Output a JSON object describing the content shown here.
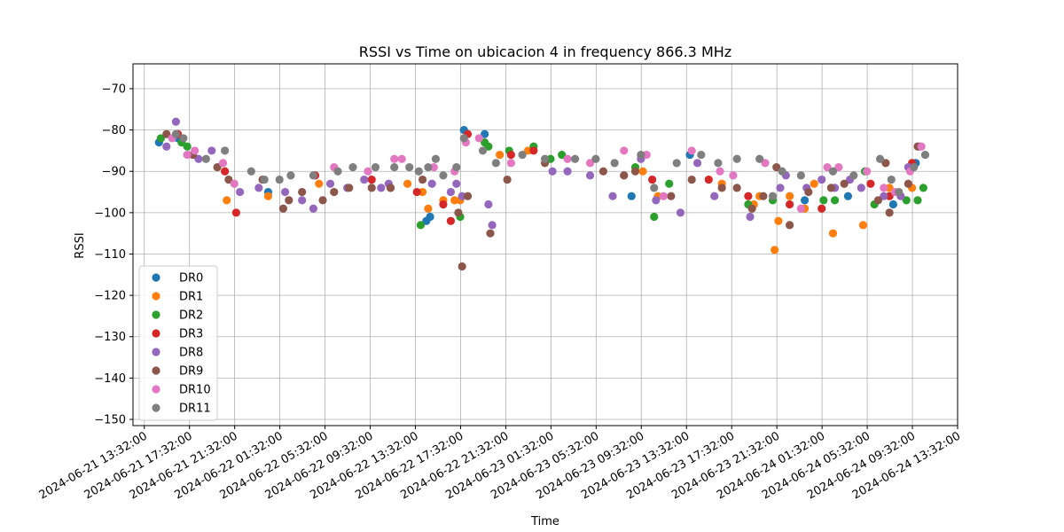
{
  "chart_data": {
    "type": "scatter",
    "title": "RSSI vs Time on ubicacion 4 in frequency 866.3 MHz",
    "xlabel": "Time",
    "ylabel": "RSSI",
    "grid": true,
    "legend_position": "lower-left",
    "xlim": [
      "2024-06-21 12:32:00",
      "2024-06-24 13:32:00"
    ],
    "ylim": [
      -151.5,
      -64
    ],
    "x_ticks": [
      "2024-06-21 13:32:00",
      "2024-06-21 17:32:00",
      "2024-06-21 21:32:00",
      "2024-06-22 01:32:00",
      "2024-06-22 05:32:00",
      "2024-06-22 09:32:00",
      "2024-06-22 13:32:00",
      "2024-06-22 17:32:00",
      "2024-06-22 21:32:00",
      "2024-06-23 01:32:00",
      "2024-06-23 05:32:00",
      "2024-06-23 09:32:00",
      "2024-06-23 13:32:00",
      "2024-06-23 17:32:00",
      "2024-06-23 21:32:00",
      "2024-06-24 01:32:00",
      "2024-06-24 05:32:00",
      "2024-06-24 09:32:00",
      "2024-06-24 13:32:00"
    ],
    "y_ticks": [
      -70,
      -80,
      -90,
      -100,
      -110,
      -120,
      -130,
      -140,
      -150
    ],
    "y_tick_labels": [
      "−70",
      "−80",
      "−90",
      "−100",
      "−110",
      "−120",
      "−130",
      "−140",
      "−150"
    ],
    "series": [
      {
        "name": "DR0",
        "color": "#1f77b4",
        "points": [
          [
            "2024-06-21 14:50",
            -83
          ],
          [
            "2024-06-21 16:30",
            -82
          ],
          [
            "2024-06-22 00:30",
            -95
          ],
          [
            "2024-06-22 14:30",
            -102
          ],
          [
            "2024-06-22 14:50",
            -101
          ],
          [
            "2024-06-22 17:50",
            -80
          ],
          [
            "2024-06-22 19:40",
            -81
          ],
          [
            "2024-06-23 08:40",
            -96
          ],
          [
            "2024-06-23 13:50",
            -86
          ],
          [
            "2024-06-24 00:00",
            -97
          ],
          [
            "2024-06-24 03:50",
            -96
          ],
          [
            "2024-06-24 07:50",
            -98
          ],
          [
            "2024-06-24 09:50",
            -88
          ]
        ]
      },
      {
        "name": "DR1",
        "color": "#ff7f0e",
        "points": [
          [
            "2024-06-21 20:50",
            -97
          ],
          [
            "2024-06-22 00:30",
            -96
          ],
          [
            "2024-06-22 05:00",
            -93
          ],
          [
            "2024-06-22 12:50",
            -93
          ],
          [
            "2024-06-22 14:10",
            -95
          ],
          [
            "2024-06-22 14:40",
            -99
          ],
          [
            "2024-06-22 16:00",
            -97
          ],
          [
            "2024-06-22 17:00",
            -97
          ],
          [
            "2024-06-22 17:30",
            -97
          ],
          [
            "2024-06-22 21:00",
            -86
          ],
          [
            "2024-06-22 23:30",
            -85
          ],
          [
            "2024-06-23 09:40",
            -90
          ],
          [
            "2024-06-23 11:00",
            -96
          ],
          [
            "2024-06-23 16:40",
            -93
          ],
          [
            "2024-06-23 20:00",
            -96
          ],
          [
            "2024-06-23 19:30",
            -98
          ],
          [
            "2024-06-23 21:20",
            -109
          ],
          [
            "2024-06-23 21:40",
            -102
          ],
          [
            "2024-06-23 22:40",
            -96
          ],
          [
            "2024-06-24 00:00",
            -99
          ],
          [
            "2024-06-24 00:50",
            -93
          ],
          [
            "2024-06-24 02:30",
            -105
          ],
          [
            "2024-06-24 05:10",
            -103
          ],
          [
            "2024-06-24 07:30",
            -94
          ],
          [
            "2024-06-24 09:30",
            -94
          ]
        ]
      },
      {
        "name": "DR2",
        "color": "#2ca02c",
        "points": [
          [
            "2024-06-21 15:00",
            -82
          ],
          [
            "2024-06-21 16:50",
            -83
          ],
          [
            "2024-06-21 17:20",
            -84
          ],
          [
            "2024-06-22 14:00",
            -103
          ],
          [
            "2024-06-22 17:30",
            -101
          ],
          [
            "2024-06-22 19:40",
            -83
          ],
          [
            "2024-06-22 20:00",
            -84
          ],
          [
            "2024-06-22 21:50",
            -85
          ],
          [
            "2024-06-23 00:00",
            -84
          ],
          [
            "2024-06-23 01:30",
            -87
          ],
          [
            "2024-06-23 02:30",
            -86
          ],
          [
            "2024-06-23 09:00",
            -89
          ],
          [
            "2024-06-23 10:40",
            -101
          ],
          [
            "2024-06-23 12:00",
            -93
          ],
          [
            "2024-06-23 19:00",
            -98
          ],
          [
            "2024-06-23 21:10",
            -97
          ],
          [
            "2024-06-24 01:40",
            -97
          ],
          [
            "2024-06-24 02:40",
            -97
          ],
          [
            "2024-06-24 05:20",
            -90
          ],
          [
            "2024-06-24 06:10",
            -98
          ],
          [
            "2024-06-24 09:00",
            -97
          ],
          [
            "2024-06-24 10:00",
            -97
          ],
          [
            "2024-06-24 10:30",
            -94
          ]
        ]
      },
      {
        "name": "DR3",
        "color": "#d62728",
        "points": [
          [
            "2024-06-21 16:30",
            -81
          ],
          [
            "2024-06-21 20:40",
            -90
          ],
          [
            "2024-06-21 21:40",
            -100
          ],
          [
            "2024-06-22 04:40",
            -91
          ],
          [
            "2024-06-22 09:40",
            -92
          ],
          [
            "2024-06-22 11:20",
            -94
          ],
          [
            "2024-06-22 13:40",
            -95
          ],
          [
            "2024-06-22 16:00",
            -98
          ],
          [
            "2024-06-22 16:40",
            -102
          ],
          [
            "2024-06-22 18:10",
            -81
          ],
          [
            "2024-06-22 22:00",
            -86
          ],
          [
            "2024-06-23 00:00",
            -85
          ],
          [
            "2024-06-23 10:30",
            -92
          ],
          [
            "2024-06-23 15:30",
            -92
          ],
          [
            "2024-06-23 19:00",
            -96
          ],
          [
            "2024-06-23 22:40",
            -98
          ],
          [
            "2024-06-24 01:30",
            -99
          ],
          [
            "2024-06-24 05:50",
            -93
          ],
          [
            "2024-06-24 07:30",
            -96
          ],
          [
            "2024-06-24 09:30",
            -88
          ]
        ]
      },
      {
        "name": "DR8",
        "color": "#9467bd",
        "points": [
          [
            "2024-06-21 15:30",
            -84
          ],
          [
            "2024-06-21 16:20",
            -78
          ],
          [
            "2024-06-21 18:20",
            -87
          ],
          [
            "2024-06-21 19:30",
            -85
          ],
          [
            "2024-06-21 22:00",
            -95
          ],
          [
            "2024-06-21 23:40",
            -94
          ],
          [
            "2024-06-22 02:00",
            -95
          ],
          [
            "2024-06-22 03:30",
            -97
          ],
          [
            "2024-06-22 04:30",
            -99
          ],
          [
            "2024-06-22 06:00",
            -93
          ],
          [
            "2024-06-22 07:30",
            -94
          ],
          [
            "2024-06-22 09:00",
            -92
          ],
          [
            "2024-06-22 10:30",
            -94
          ],
          [
            "2024-06-22 11:10",
            -93
          ],
          [
            "2024-06-22 15:00",
            -93
          ],
          [
            "2024-06-22 16:40",
            -95
          ],
          [
            "2024-06-22 17:10",
            -93
          ],
          [
            "2024-06-22 17:40",
            -96
          ],
          [
            "2024-06-22 20:00",
            -98
          ],
          [
            "2024-06-22 20:20",
            -103
          ],
          [
            "2024-06-23 01:40",
            -90
          ],
          [
            "2024-06-23 03:00",
            -90
          ],
          [
            "2024-06-23 05:00",
            -91
          ],
          [
            "2024-06-23 07:00",
            -96
          ],
          [
            "2024-06-23 08:00",
            -91
          ],
          [
            "2024-06-23 09:30",
            -87
          ],
          [
            "2024-06-23 10:50",
            -97
          ],
          [
            "2024-06-23 13:00",
            -100
          ],
          [
            "2024-06-23 14:30",
            -88
          ],
          [
            "2024-06-23 16:00",
            -96
          ],
          [
            "2024-06-23 19:10",
            -101
          ],
          [
            "2024-06-23 21:50",
            -94
          ],
          [
            "2024-06-23 22:20",
            -91
          ],
          [
            "2024-06-24 00:10",
            -94
          ],
          [
            "2024-06-24 01:30",
            -92
          ],
          [
            "2024-06-24 02:40",
            -94
          ],
          [
            "2024-06-24 04:00",
            -92
          ],
          [
            "2024-06-24 05:00",
            -94
          ],
          [
            "2024-06-24 07:00",
            -96
          ],
          [
            "2024-06-24 08:30",
            -96
          ],
          [
            "2024-06-24 09:10",
            -89
          ],
          [
            "2024-06-24 10:10",
            -84
          ]
        ]
      },
      {
        "name": "DR9",
        "color": "#8c564b",
        "points": [
          [
            "2024-06-21 15:30",
            -81
          ],
          [
            "2024-06-21 17:50",
            -86
          ],
          [
            "2024-06-21 20:00",
            -89
          ],
          [
            "2024-06-21 21:00",
            -92
          ],
          [
            "2024-06-22 00:00",
            -92
          ],
          [
            "2024-06-22 01:50",
            -99
          ],
          [
            "2024-06-22 02:20",
            -97
          ],
          [
            "2024-06-22 03:30",
            -95
          ],
          [
            "2024-06-22 05:20",
            -97
          ],
          [
            "2024-06-22 06:20",
            -95
          ],
          [
            "2024-06-22 07:40",
            -94
          ],
          [
            "2024-06-22 09:40",
            -94
          ],
          [
            "2024-06-22 11:20",
            -94
          ],
          [
            "2024-06-22 14:10",
            -92
          ],
          [
            "2024-06-22 17:20",
            -100
          ],
          [
            "2024-06-22 17:40",
            -113
          ],
          [
            "2024-06-22 18:10",
            -96
          ],
          [
            "2024-06-22 20:10",
            -105
          ],
          [
            "2024-06-22 21:40",
            -92
          ],
          [
            "2024-06-23 01:00",
            -88
          ],
          [
            "2024-06-23 06:10",
            -90
          ],
          [
            "2024-06-23 08:00",
            -91
          ],
          [
            "2024-06-23 09:00",
            -90
          ],
          [
            "2024-06-23 12:10",
            -96
          ],
          [
            "2024-06-23 14:00",
            -92
          ],
          [
            "2024-06-23 16:40",
            -94
          ],
          [
            "2024-06-23 18:00",
            -94
          ],
          [
            "2024-06-23 19:20",
            -99
          ],
          [
            "2024-06-23 20:20",
            -96
          ],
          [
            "2024-06-23 21:30",
            -89
          ],
          [
            "2024-06-23 22:40",
            -103
          ],
          [
            "2024-06-24 00:20",
            -95
          ],
          [
            "2024-06-24 02:20",
            -94
          ],
          [
            "2024-06-24 03:30",
            -93
          ],
          [
            "2024-06-24 06:30",
            -97
          ],
          [
            "2024-06-24 07:30",
            -100
          ],
          [
            "2024-06-24 07:10",
            -88
          ],
          [
            "2024-06-24 09:10",
            -93
          ],
          [
            "2024-06-24 10:00",
            -84
          ]
        ]
      },
      {
        "name": "DR10",
        "color": "#e377c2",
        "points": [
          [
            "2024-06-21 16:00",
            -82
          ],
          [
            "2024-06-21 17:20",
            -86
          ],
          [
            "2024-06-21 18:00",
            -85
          ],
          [
            "2024-06-21 20:30",
            -88
          ],
          [
            "2024-06-21 21:30",
            -93
          ],
          [
            "2024-06-22 06:20",
            -89
          ],
          [
            "2024-06-22 09:20",
            -90
          ],
          [
            "2024-06-22 11:40",
            -87
          ],
          [
            "2024-06-22 12:20",
            -87
          ],
          [
            "2024-06-22 15:10",
            -89
          ],
          [
            "2024-06-22 17:00",
            -90
          ],
          [
            "2024-06-22 18:00",
            -83
          ],
          [
            "2024-06-22 19:10",
            -82
          ],
          [
            "2024-06-22 22:00",
            -88
          ],
          [
            "2024-06-23 03:00",
            -87
          ],
          [
            "2024-06-23 05:00",
            -88
          ],
          [
            "2024-06-23 08:00",
            -85
          ],
          [
            "2024-06-23 10:00",
            -86
          ],
          [
            "2024-06-23 11:30",
            -96
          ],
          [
            "2024-06-23 14:00",
            -85
          ],
          [
            "2024-06-23 16:30",
            -90
          ],
          [
            "2024-06-23 17:40",
            -91
          ],
          [
            "2024-06-23 20:30",
            -88
          ],
          [
            "2024-06-23 23:40",
            -99
          ],
          [
            "2024-06-24 02:00",
            -89
          ],
          [
            "2024-06-24 03:00",
            -89
          ],
          [
            "2024-06-24 05:30",
            -90
          ],
          [
            "2024-06-24 07:00",
            -94
          ],
          [
            "2024-06-24 08:00",
            -95
          ],
          [
            "2024-06-24 09:20",
            -90
          ],
          [
            "2024-06-24 10:20",
            -84
          ]
        ]
      },
      {
        "name": "DR11",
        "color": "#7f7f7f",
        "points": [
          [
            "2024-06-21 16:20",
            -81
          ],
          [
            "2024-06-21 17:00",
            -82
          ],
          [
            "2024-06-21 19:00",
            -87
          ],
          [
            "2024-06-21 20:40",
            -85
          ],
          [
            "2024-06-21 23:00",
            -90
          ],
          [
            "2024-06-22 00:10",
            -92
          ],
          [
            "2024-06-22 01:30",
            -92
          ],
          [
            "2024-06-22 02:30",
            -91
          ],
          [
            "2024-06-22 04:30",
            -91
          ],
          [
            "2024-06-22 06:40",
            -90
          ],
          [
            "2024-06-22 08:00",
            -89
          ],
          [
            "2024-06-22 10:00",
            -89
          ],
          [
            "2024-06-22 11:40",
            -89
          ],
          [
            "2024-06-22 13:00",
            -89
          ],
          [
            "2024-06-22 13:50",
            -90
          ],
          [
            "2024-06-22 14:40",
            -89
          ],
          [
            "2024-06-22 15:20",
            -87
          ],
          [
            "2024-06-22 16:00",
            -91
          ],
          [
            "2024-06-22 17:10",
            -89
          ],
          [
            "2024-06-22 17:50",
            -82
          ],
          [
            "2024-06-22 19:30",
            -85
          ],
          [
            "2024-06-22 20:40",
            -88
          ],
          [
            "2024-06-22 23:00",
            -86
          ],
          [
            "2024-06-23 01:00",
            -87
          ],
          [
            "2024-06-23 03:40",
            -87
          ],
          [
            "2024-06-23 05:30",
            -87
          ],
          [
            "2024-06-23 07:10",
            -88
          ],
          [
            "2024-06-23 09:30",
            -86
          ],
          [
            "2024-06-23 10:40",
            -94
          ],
          [
            "2024-06-23 12:40",
            -88
          ],
          [
            "2024-06-23 14:50",
            -86
          ],
          [
            "2024-06-23 16:20",
            -88
          ],
          [
            "2024-06-23 18:00",
            -87
          ],
          [
            "2024-06-23 20:00",
            -87
          ],
          [
            "2024-06-23 21:10",
            -96
          ],
          [
            "2024-06-23 22:00",
            -90
          ],
          [
            "2024-06-23 23:40",
            -91
          ],
          [
            "2024-06-24 02:30",
            -90
          ],
          [
            "2024-06-24 04:20",
            -91
          ],
          [
            "2024-06-24 06:40",
            -87
          ],
          [
            "2024-06-24 07:40",
            -92
          ],
          [
            "2024-06-24 08:20",
            -95
          ],
          [
            "2024-06-24 09:40",
            -89
          ],
          [
            "2024-06-24 10:40",
            -86
          ]
        ]
      }
    ]
  }
}
